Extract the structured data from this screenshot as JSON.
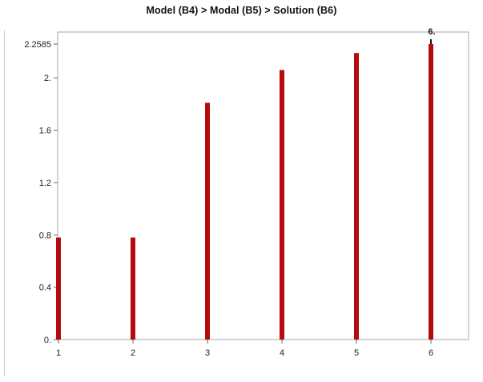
{
  "chart_data": {
    "type": "bar",
    "title": "Model (B4) > Modal (B5) > Solution (B6)",
    "categories": [
      "1",
      "2",
      "3",
      "4",
      "5",
      "6"
    ],
    "values": [
      0.78,
      0.78,
      1.81,
      2.06,
      2.19,
      2.2585
    ],
    "ylim": [
      0,
      2.2585
    ],
    "yticks": [
      {
        "value": 0,
        "label": "0."
      },
      {
        "value": 0.4,
        "label": "0.4"
      },
      {
        "value": 0.8,
        "label": "0.8"
      },
      {
        "value": 1.2,
        "label": "1.2"
      },
      {
        "value": 1.6,
        "label": "1.6"
      },
      {
        "value": 2.0,
        "label": "2."
      },
      {
        "value": 2.2585,
        "label": "2.2585"
      }
    ],
    "annotation": {
      "category": "6",
      "label": "6."
    },
    "bar_color": "#b40c0c",
    "grid": false
  }
}
